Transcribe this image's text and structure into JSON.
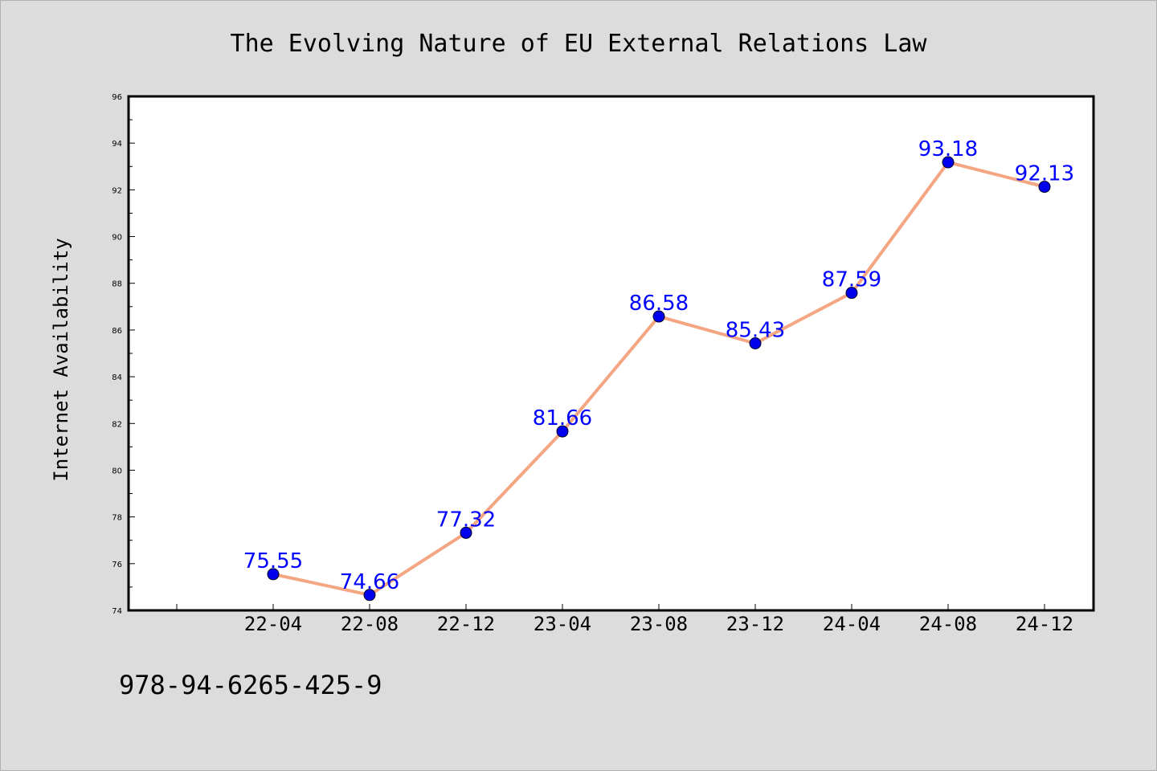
{
  "chart_data": {
    "type": "line",
    "title": "The Evolving Nature of EU External Relations Law",
    "xlabel": "",
    "ylabel": "Internet Availability",
    "categories": [
      "22-04",
      "22-08",
      "22-12",
      "23-04",
      "23-08",
      "23-12",
      "24-04",
      "24-08",
      "24-12"
    ],
    "series": [
      {
        "values": [
          75.55,
          74.66,
          77.32,
          81.66,
          86.58,
          85.43,
          87.59,
          93.18,
          92.13
        ],
        "labels": [
          "75.55",
          "74.66",
          "77.32",
          "81.66",
          "86.58",
          "85.43",
          "87.59",
          "93.18",
          "92.13"
        ],
        "line_color": "#f4a582",
        "marker_color": "#0000ee",
        "label_color": "#0000ff"
      }
    ],
    "ylim": [
      74,
      96
    ],
    "yticks": [
      "74",
      "76",
      "78",
      "80",
      "82",
      "84",
      "86",
      "88",
      "90",
      "92",
      "94",
      "96"
    ],
    "grid": false,
    "legend": "none"
  },
  "footer": {
    "code": "978-94-6265-425-9"
  },
  "colors": {
    "background": "#dcdcdc",
    "plot_background": "#ffffff",
    "axis": "#000000"
  }
}
